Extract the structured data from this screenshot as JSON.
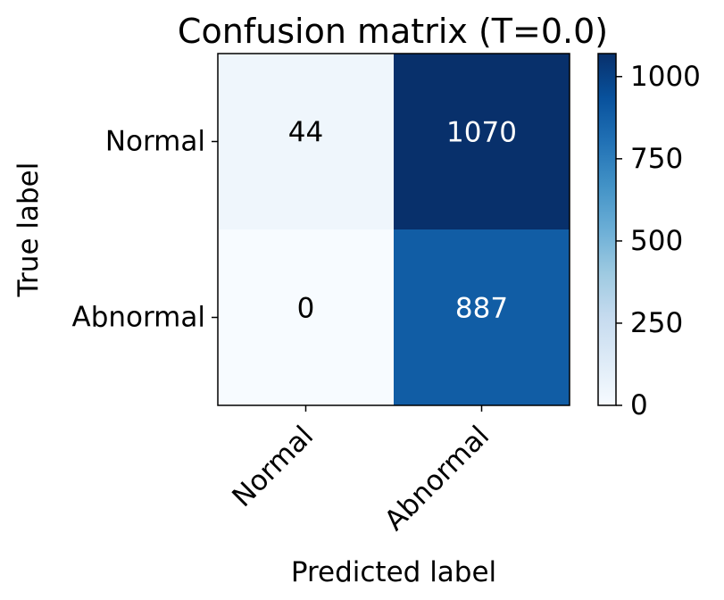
{
  "chart_data": {
    "type": "heatmap",
    "title": "Confusion matrix (T=0.0)",
    "xlabel": "Predicted label",
    "ylabel": "True label",
    "x_categories": [
      "Normal",
      "Abnormal"
    ],
    "y_categories": [
      "Normal",
      "Abnormal"
    ],
    "values": [
      [
        44,
        1070
      ],
      [
        0,
        887
      ]
    ],
    "cell_labels": [
      [
        "44",
        "1070"
      ],
      [
        "0",
        "887"
      ]
    ],
    "colormap": "Blues",
    "colorbar": {
      "range": [
        0,
        1070
      ],
      "ticks": [
        0,
        250,
        500,
        750,
        1000
      ],
      "tick_labels": [
        "0",
        "250",
        "500",
        "750",
        "1000"
      ]
    },
    "grid": false
  }
}
